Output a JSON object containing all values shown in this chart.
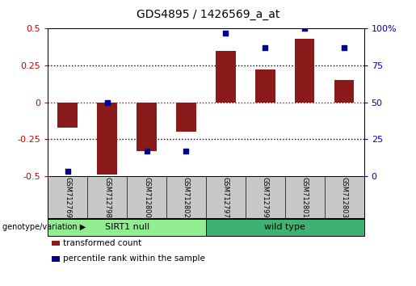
{
  "title": "GDS4895 / 1426569_a_at",
  "samples": [
    "GSM712769",
    "GSM712798",
    "GSM712800",
    "GSM712802",
    "GSM712797",
    "GSM712799",
    "GSM712801",
    "GSM712803"
  ],
  "transformed_count": [
    -0.17,
    -0.49,
    -0.33,
    -0.2,
    0.35,
    0.22,
    0.43,
    0.15
  ],
  "percentile_rank": [
    3,
    50,
    17,
    17,
    97,
    87,
    100,
    87
  ],
  "groups": [
    {
      "label": "SIRT1 null",
      "start": 0,
      "end": 4,
      "color": "#90EE90"
    },
    {
      "label": "wild type",
      "start": 4,
      "end": 8,
      "color": "#3CB371"
    }
  ],
  "bar_color": "#8B1A1A",
  "dot_color": "#00008B",
  "ylim": [
    -0.5,
    0.5
  ],
  "y2lim": [
    0,
    100
  ],
  "yticks": [
    -0.5,
    -0.25,
    0,
    0.25,
    0.5
  ],
  "y2ticks": [
    0,
    25,
    50,
    75,
    100
  ],
  "bar_width": 0.5,
  "legend_labels": [
    "transformed count",
    "percentile rank within the sample"
  ],
  "legend_colors": [
    "#8B1A1A",
    "#00008B"
  ],
  "group_label": "genotype/variation",
  "background_color": "#ffffff",
  "tick_label_color_left": "#CC0000",
  "tick_label_color_right": "#0000CC",
  "label_bg_color": "#C8C8C8"
}
